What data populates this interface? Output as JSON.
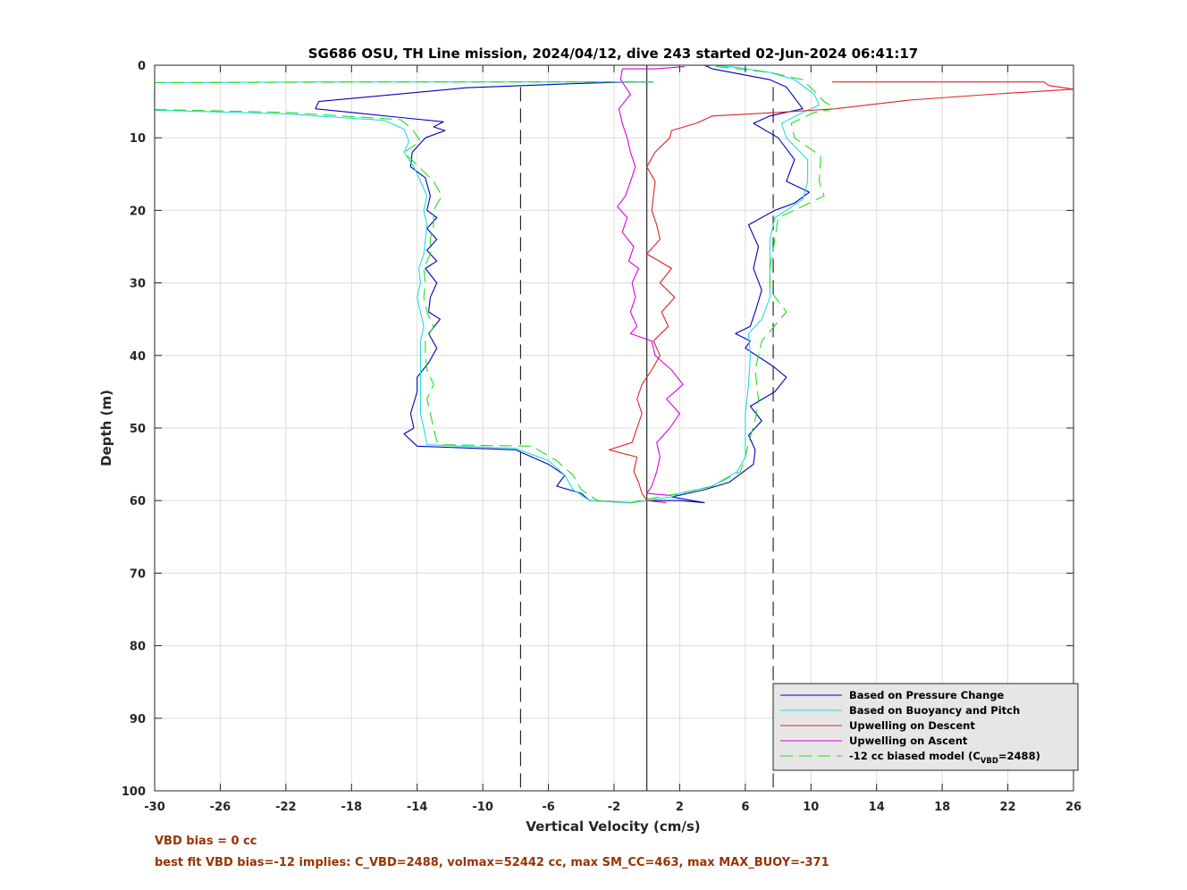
{
  "chart_data": {
    "type": "line",
    "title": "SG686 OSU, TH Line mission, 2024/04/12, dive 243 started 02-Jun-2024 06:41:17",
    "xlabel": "Vertical Velocity (cm/s)",
    "ylabel": "Depth (m)",
    "xlim": [
      -30,
      26
    ],
    "ylim": [
      0,
      100
    ],
    "y_reversed": true,
    "grid": true,
    "xticks": [
      "-30",
      "-26",
      "-22",
      "-18",
      "-14",
      "-10",
      "-6",
      "-2",
      "2",
      "6",
      "10",
      "14",
      "18",
      "22",
      "26"
    ],
    "yticks": [
      "0",
      "10",
      "20",
      "30",
      "40",
      "50",
      "60",
      "70",
      "80",
      "90",
      "100"
    ],
    "legend_position": "bottom-right",
    "reference_lines": {
      "zero_line": 0,
      "dashed_lines": [
        -7.7,
        7.7
      ]
    },
    "series": [
      {
        "name": "Based on Pressure Change",
        "color": "#0000bb",
        "dash": "solid",
        "points": [
          [
            0.4,
            2.3
          ],
          [
            -1,
            2.3
          ],
          [
            -4,
            2.5
          ],
          [
            -11,
            3.1
          ],
          [
            -20,
            5.0
          ],
          [
            -20.2,
            6.0
          ],
          [
            -15,
            7.2
          ],
          [
            -12.4,
            7.8
          ],
          [
            -13,
            8.5
          ],
          [
            -12.3,
            9.0
          ],
          [
            -13.5,
            10.0
          ],
          [
            -14.3,
            12.0
          ],
          [
            -14.4,
            14.0
          ],
          [
            -13.5,
            15.5
          ],
          [
            -13.2,
            18.0
          ],
          [
            -13.4,
            20.0
          ],
          [
            -12.8,
            21.0
          ],
          [
            -13.4,
            22.5
          ],
          [
            -12.8,
            24.0
          ],
          [
            -13.4,
            25.5
          ],
          [
            -12.8,
            27.0
          ],
          [
            -13.5,
            28.0
          ],
          [
            -12.8,
            30.0
          ],
          [
            -13.2,
            32.0
          ],
          [
            -13.3,
            34.0
          ],
          [
            -12.6,
            35.0
          ],
          [
            -13.3,
            37.0
          ],
          [
            -12.8,
            39.0
          ],
          [
            -13.3,
            41.0
          ],
          [
            -14.0,
            43.0
          ],
          [
            -14.0,
            45.0
          ],
          [
            -14.4,
            48.0
          ],
          [
            -14.2,
            50.0
          ],
          [
            -14.8,
            50.8
          ],
          [
            -14.0,
            52.5
          ],
          [
            -8,
            53.0
          ],
          [
            -6,
            55.0
          ],
          [
            -5,
            56.5
          ],
          [
            -5.5,
            58.0
          ],
          [
            -4,
            59.0
          ],
          [
            -3.5,
            60.0
          ],
          [
            -1,
            60.3
          ],
          [
            0,
            60.0
          ],
          [
            2,
            60.0
          ],
          [
            3.5,
            60.3
          ],
          [
            1.5,
            59.5
          ],
          [
            3.5,
            58.5
          ],
          [
            5,
            57.5
          ],
          [
            6.5,
            55.0
          ],
          [
            6.6,
            53.0
          ],
          [
            6.2,
            51.0
          ],
          [
            7.0,
            49.0
          ],
          [
            6.3,
            47.0
          ],
          [
            7.8,
            45.0
          ],
          [
            8.5,
            43.0
          ],
          [
            7.7,
            41.5
          ],
          [
            6.0,
            39.0
          ],
          [
            6.3,
            38.0
          ],
          [
            5.4,
            37.0
          ],
          [
            6.3,
            36.0
          ],
          [
            6.6,
            34.0
          ],
          [
            7.0,
            31.0
          ],
          [
            6.5,
            28.0
          ],
          [
            6.8,
            25.0
          ],
          [
            6.2,
            22.0
          ],
          [
            7.8,
            20.0
          ],
          [
            9.0,
            19.0
          ],
          [
            9.9,
            17.5
          ],
          [
            8.5,
            16.0
          ],
          [
            9.0,
            13.0
          ],
          [
            8.0,
            10.0
          ],
          [
            6.5,
            8.0
          ],
          [
            7.5,
            7.0
          ],
          [
            9.5,
            6.0
          ],
          [
            8.5,
            3.0
          ],
          [
            7.5,
            2.0
          ],
          [
            4.0,
            0.5
          ],
          [
            3.5,
            0.0
          ]
        ]
      },
      {
        "name": "Based on Buoyancy and Pitch",
        "color": "#22dddd",
        "dash": "solid",
        "points": [
          [
            0.4,
            2.3
          ],
          [
            -2,
            2.3
          ],
          [
            -10,
            2.3
          ],
          [
            -20,
            2.3
          ],
          [
            -30,
            2.4
          ],
          [
            -30,
            6.2
          ],
          [
            -22,
            6.7
          ],
          [
            -16,
            7.6
          ],
          [
            -14.8,
            8.8
          ],
          [
            -14.5,
            10.5
          ],
          [
            -14.8,
            12.0
          ],
          [
            -14.2,
            14.0
          ],
          [
            -13.8,
            16.0
          ],
          [
            -13.4,
            18.0
          ],
          [
            -13.6,
            20.0
          ],
          [
            -13.4,
            22.0
          ],
          [
            -13.5,
            24.0
          ],
          [
            -13.6,
            26.0
          ],
          [
            -13.9,
            28.0
          ],
          [
            -13.8,
            30.0
          ],
          [
            -14.0,
            32.0
          ],
          [
            -13.8,
            34.0
          ],
          [
            -13.6,
            36.0
          ],
          [
            -13.8,
            38.0
          ],
          [
            -13.8,
            40.0
          ],
          [
            -13.8,
            42.0
          ],
          [
            -13.8,
            44.0
          ],
          [
            -13.8,
            46.0
          ],
          [
            -13.8,
            48.0
          ],
          [
            -13.6,
            50.0
          ],
          [
            -13.4,
            52.3
          ],
          [
            -8,
            52.8
          ],
          [
            -6,
            54.5
          ],
          [
            -5,
            56.5
          ],
          [
            -4.5,
            58.5
          ],
          [
            -3.5,
            60.0
          ],
          [
            -1,
            60.3
          ],
          [
            0,
            60.0
          ],
          [
            1.5,
            59.5
          ],
          [
            2,
            59.0
          ],
          [
            4,
            58.0
          ],
          [
            5.5,
            56.0
          ],
          [
            6.0,
            54.0
          ],
          [
            6.0,
            52.0
          ],
          [
            6.0,
            48.0
          ],
          [
            6.2,
            44.0
          ],
          [
            6.3,
            40.0
          ],
          [
            6.2,
            37.0
          ],
          [
            7.0,
            35.0
          ],
          [
            7.5,
            32.0
          ],
          [
            7.5,
            28.0
          ],
          [
            7.5,
            24.0
          ],
          [
            7.8,
            21.0
          ],
          [
            8.5,
            20.0
          ],
          [
            9.5,
            18.5
          ],
          [
            9.8,
            16.0
          ],
          [
            9.8,
            13.0
          ],
          [
            8.5,
            10.0
          ],
          [
            8.2,
            8.0
          ],
          [
            9.5,
            6.5
          ],
          [
            10.5,
            5.5
          ],
          [
            10.2,
            4.0
          ],
          [
            9.0,
            2.0
          ],
          [
            7.5,
            1.0
          ],
          [
            5.5,
            0.3
          ],
          [
            4.0,
            0.0
          ]
        ]
      },
      {
        "name": "Upwelling on Descent",
        "color": "#dd2222",
        "dash": "solid",
        "points": [
          [
            11.3,
            2.3
          ],
          [
            18,
            2.3
          ],
          [
            22,
            2.3
          ],
          [
            24.2,
            2.3
          ],
          [
            24.5,
            2.8
          ],
          [
            26,
            3.3
          ],
          [
            21,
            4.0
          ],
          [
            16,
            4.8
          ],
          [
            11.5,
            6.0
          ],
          [
            8,
            6.5
          ],
          [
            4,
            7.0
          ],
          [
            3,
            8.0
          ],
          [
            1.5,
            9.0
          ],
          [
            1.4,
            10.0
          ],
          [
            0.5,
            12.0
          ],
          [
            0.0,
            14.0
          ],
          [
            0.5,
            16.0
          ],
          [
            0.4,
            18.0
          ],
          [
            0.3,
            20.0
          ],
          [
            0.6,
            22.0
          ],
          [
            0.8,
            24.0
          ],
          [
            0.0,
            26.0
          ],
          [
            1.5,
            28.0
          ],
          [
            0.8,
            30.0
          ],
          [
            1.7,
            32.0
          ],
          [
            0.9,
            34.0
          ],
          [
            1.3,
            36.0
          ],
          [
            0.4,
            38.0
          ],
          [
            0.8,
            40.0
          ],
          [
            0.3,
            42.0
          ],
          [
            -0.3,
            44.0
          ],
          [
            -0.6,
            46.0
          ],
          [
            -0.3,
            48.0
          ],
          [
            -0.6,
            50.0
          ],
          [
            -0.9,
            52.0
          ],
          [
            -2.3,
            53.0
          ],
          [
            -0.6,
            54.0
          ],
          [
            -0.8,
            56.0
          ],
          [
            -0.5,
            57.5
          ],
          [
            -0.3,
            59.0
          ],
          [
            0.0,
            60.0
          ],
          [
            1.2,
            60.3
          ]
        ]
      },
      {
        "name": "Upwelling on Ascent",
        "color": "#dd00dd",
        "dash": "solid",
        "points": [
          [
            2.3,
            0.2
          ],
          [
            0.5,
            0.5
          ],
          [
            -1.5,
            0.5
          ],
          [
            -1.6,
            2.0
          ],
          [
            -1.0,
            4.0
          ],
          [
            -1.7,
            6.0
          ],
          [
            -1.5,
            8.0
          ],
          [
            -1.2,
            10.0
          ],
          [
            -1.0,
            12.0
          ],
          [
            -0.7,
            14.0
          ],
          [
            -1.0,
            16.0
          ],
          [
            -1.3,
            18.0
          ],
          [
            -1.8,
            19.5
          ],
          [
            -1.2,
            21.0
          ],
          [
            -1.5,
            23.0
          ],
          [
            -0.8,
            25.0
          ],
          [
            -1.1,
            27.0
          ],
          [
            -0.5,
            28.0
          ],
          [
            -0.9,
            30.0
          ],
          [
            -0.7,
            32.0
          ],
          [
            -1.0,
            34.0
          ],
          [
            -0.6,
            36.0
          ],
          [
            -1.0,
            37.0
          ],
          [
            0.3,
            38.0
          ],
          [
            0.5,
            40.0
          ],
          [
            1.5,
            42.0
          ],
          [
            2.2,
            44.0
          ],
          [
            1.2,
            46.0
          ],
          [
            2.0,
            48.0
          ],
          [
            1.4,
            50.0
          ],
          [
            0.6,
            52.0
          ],
          [
            0.8,
            54.0
          ],
          [
            0.6,
            56.0
          ],
          [
            0.3,
            58.0
          ],
          [
            0.0,
            59.0
          ],
          [
            1.5,
            59.3
          ]
        ]
      },
      {
        "name": "-12 cc biased model (C_VBD=2488)",
        "color": "#22dd22",
        "dash": "dashed",
        "points": [
          [
            0.4,
            2.3
          ],
          [
            -5,
            2.3
          ],
          [
            -15,
            2.3
          ],
          [
            -30,
            2.4
          ],
          [
            -30,
            6.1
          ],
          [
            -22,
            6.5
          ],
          [
            -15,
            7.5
          ],
          [
            -14.3,
            8.8
          ],
          [
            -13.8,
            10.5
          ],
          [
            -14.8,
            12.0
          ],
          [
            -13.9,
            14.0
          ],
          [
            -13.0,
            16.0
          ],
          [
            -12.5,
            18.0
          ],
          [
            -13.0,
            20.0
          ],
          [
            -13.0,
            22.0
          ],
          [
            -13.2,
            24.0
          ],
          [
            -13.2,
            26.0
          ],
          [
            -13.6,
            28.0
          ],
          [
            -13.5,
            30.0
          ],
          [
            -13.6,
            32.0
          ],
          [
            -13.4,
            34.0
          ],
          [
            -13.0,
            36.0
          ],
          [
            -13.5,
            38.0
          ],
          [
            -13.5,
            40.0
          ],
          [
            -13.4,
            42.0
          ],
          [
            -13.0,
            44.0
          ],
          [
            -13.4,
            46.0
          ],
          [
            -13.2,
            48.0
          ],
          [
            -13.0,
            50.0
          ],
          [
            -12.8,
            51.8
          ],
          [
            -12.6,
            52.3
          ],
          [
            -7,
            52.5
          ],
          [
            -5.5,
            54.5
          ],
          [
            -4.5,
            56.5
          ],
          [
            -4.0,
            58.5
          ],
          [
            -3.0,
            60.0
          ],
          [
            -1,
            60.3
          ],
          [
            0,
            59.8
          ],
          [
            2,
            59.0
          ],
          [
            4,
            58.0
          ],
          [
            5.7,
            56.0
          ],
          [
            6.0,
            54.0
          ],
          [
            6.2,
            52.0
          ],
          [
            6.6,
            49.0
          ],
          [
            6.8,
            46.0
          ],
          [
            6.6,
            42.0
          ],
          [
            7.0,
            38.0
          ],
          [
            8.5,
            34.0
          ],
          [
            7.5,
            31.0
          ],
          [
            7.5,
            28.0
          ],
          [
            7.8,
            24.0
          ],
          [
            8.0,
            21.0
          ],
          [
            9.0,
            20.0
          ],
          [
            10.8,
            18.0
          ],
          [
            10.5,
            16.0
          ],
          [
            10.6,
            12.5
          ],
          [
            9.0,
            10.0
          ],
          [
            8.8,
            8.0
          ],
          [
            10.2,
            6.5
          ],
          [
            11.5,
            6.0
          ],
          [
            10.8,
            5.0
          ],
          [
            10.4,
            4.0
          ],
          [
            9.5,
            2.0
          ],
          [
            7.5,
            1.0
          ],
          [
            5.5,
            0.5
          ],
          [
            3.5,
            0.0
          ]
        ]
      }
    ],
    "annotations": [
      "VBD bias = 0 cc",
      "best fit VBD bias=-12 implies: C_VBD=2488, volmax=52442 cc, max SM_CC=463, max MAX_BUOY=-371"
    ],
    "annotation_color": "#993300"
  }
}
